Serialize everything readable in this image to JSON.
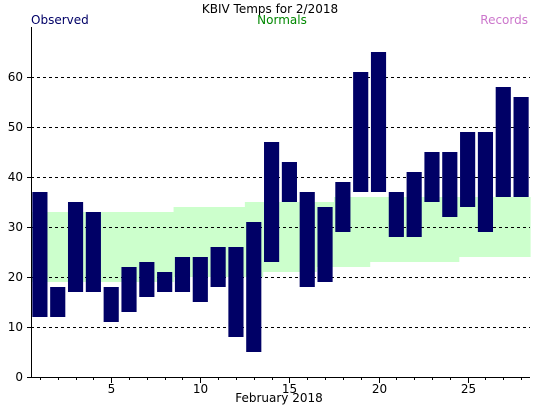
{
  "chart_data": {
    "type": "bar",
    "title": "KBIV Temps for 2/2018",
    "xlabel": "February 2018",
    "ylabel": "",
    "legend": {
      "observed": "Observed",
      "normals": "Normals",
      "records": "Records",
      "placement": "top"
    },
    "colors": {
      "observed": "#000066",
      "normals_band": "#ccffcc",
      "observed_legend": "#000066",
      "normals_legend": "#008800",
      "records_legend": "#cc77cc",
      "grid": "#000000",
      "title": "#000000"
    },
    "ylim": [
      0,
      70
    ],
    "yticks": [
      0,
      10,
      20,
      30,
      40,
      50,
      60
    ],
    "xlim": [
      0.5,
      28.5
    ],
    "xticks": [
      5,
      10,
      15,
      20,
      25
    ],
    "grid": "horizontal dashed",
    "days": [
      1,
      2,
      3,
      4,
      5,
      6,
      7,
      8,
      9,
      10,
      11,
      12,
      13,
      14,
      15,
      16,
      17,
      18,
      19,
      20,
      21,
      22,
      23,
      24,
      25,
      26,
      27,
      28
    ],
    "observed_low": [
      12,
      12,
      17,
      17,
      11,
      13,
      16,
      17,
      17,
      15,
      18,
      8,
      5,
      23,
      35,
      18,
      19,
      29,
      37,
      37,
      28,
      28,
      35,
      32,
      34,
      29,
      36,
      36
    ],
    "observed_high": [
      37,
      18,
      35,
      33,
      18,
      22,
      23,
      21,
      24,
      24,
      26,
      26,
      31,
      47,
      43,
      37,
      34,
      39,
      61,
      65,
      37,
      41,
      45,
      45,
      49,
      49,
      58,
      56
    ],
    "normal_low": [
      19,
      19,
      19,
      19,
      19,
      19,
      19,
      19,
      20,
      20,
      20,
      20,
      20,
      21,
      21,
      21,
      22,
      22,
      22,
      23,
      23,
      23,
      23,
      23,
      24,
      24,
      24,
      24
    ],
    "normal_high": [
      33,
      33,
      33,
      33,
      33,
      33,
      33,
      33,
      34,
      34,
      34,
      34,
      35,
      35,
      35,
      35,
      35,
      36,
      36,
      36,
      36,
      36,
      36,
      36,
      36,
      36,
      36,
      36
    ]
  }
}
